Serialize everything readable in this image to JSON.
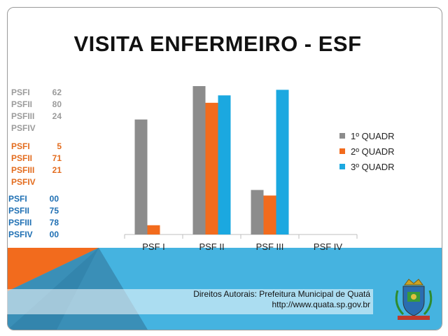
{
  "title": "VISITA ENFERMEIRO - ESF",
  "stats_groups": [
    {
      "color": "#9b9b9b",
      "rows": [
        {
          "label": "PSFI",
          "value": "62"
        },
        {
          "label": "PSFII",
          "value": "80"
        },
        {
          "label": "PSFIII",
          "value": "24"
        },
        {
          "label": "PSFIV",
          "value": ""
        }
      ]
    },
    {
      "color": "#e36c1e",
      "rows": [
        {
          "label": "PSFI",
          "value": "5"
        },
        {
          "label": "PSFII",
          "value": "71"
        },
        {
          "label": "PSFIII",
          "value": "21"
        },
        {
          "label": "PSFIV",
          "value": ""
        }
      ]
    },
    {
      "color": "#1e6fb3",
      "rows": [
        {
          "label": "PSFI",
          "value": "00"
        },
        {
          "label": "PSFII",
          "value": "75"
        },
        {
          "label": "PSFIII",
          "value": "78"
        },
        {
          "label": "PSFIV",
          "value": "00"
        }
      ]
    }
  ],
  "chart_data": {
    "type": "bar",
    "title": "VISITA ENFERMEIRO - ESF",
    "categories": [
      "PSF I",
      "PSF II",
      "PSF III",
      "PSF IV"
    ],
    "series": [
      {
        "name": "1º QUADR",
        "color": "#8c8c8c",
        "values": [
          62,
          80,
          24,
          0
        ]
      },
      {
        "name": "2º QUADR",
        "color": "#f26b1d",
        "values": [
          5,
          71,
          21,
          0
        ]
      },
      {
        "name": "3º QUADR",
        "color": "#1ba8e0",
        "values": [
          0,
          75,
          78,
          0
        ]
      }
    ],
    "ylim": [
      0,
      80
    ],
    "grid": false,
    "legend_position": "right"
  },
  "footer": {
    "line1": "Direitos Autorais: Prefeitura Municipal de Quatá",
    "line2": "http://www.quata.sp.gov.br"
  },
  "crest_icon": "municipal-crest-icon"
}
